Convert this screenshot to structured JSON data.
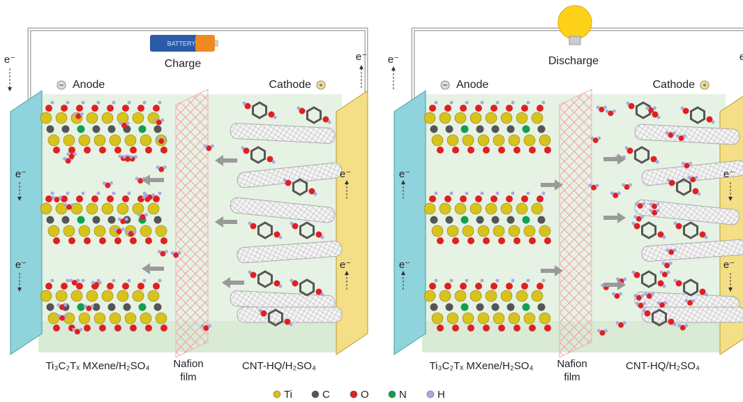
{
  "battery": "BATTERY",
  "panels": [
    {
      "mode": "Charge",
      "anode": "Anode",
      "cathode": "Cathode",
      "electrons": [
        "e⁻",
        "e⁻",
        "e⁻",
        "e⁻",
        "e⁻",
        "e⁻"
      ],
      "anode_material": "Ti₃C₂Tₓ MXene/H₂SO₄",
      "membrane": [
        "Nafion",
        "film"
      ],
      "cathode_material": "CNT-HQ/H₂SO₄"
    },
    {
      "mode": "Discharge",
      "anode": "Anode",
      "cathode": "Cathode",
      "electrons": [
        "e⁻",
        "e⁻",
        "e⁻",
        "e⁻",
        "e⁻",
        "e⁻"
      ],
      "anode_material": "Ti₃C₂Tₓ MXene/H₂SO₄",
      "membrane": [
        "Nafion",
        "film"
      ],
      "cathode_material": "CNT-HQ/H₂SO₄"
    }
  ],
  "legend": [
    {
      "symbol": "Ti",
      "color": "#d8c21c"
    },
    {
      "symbol": "C",
      "color": "#555555"
    },
    {
      "symbol": "O",
      "color": "#e02020"
    },
    {
      "symbol": "N",
      "color": "#10a050"
    },
    {
      "symbol": "H",
      "color": "#a8a8e0"
    }
  ]
}
